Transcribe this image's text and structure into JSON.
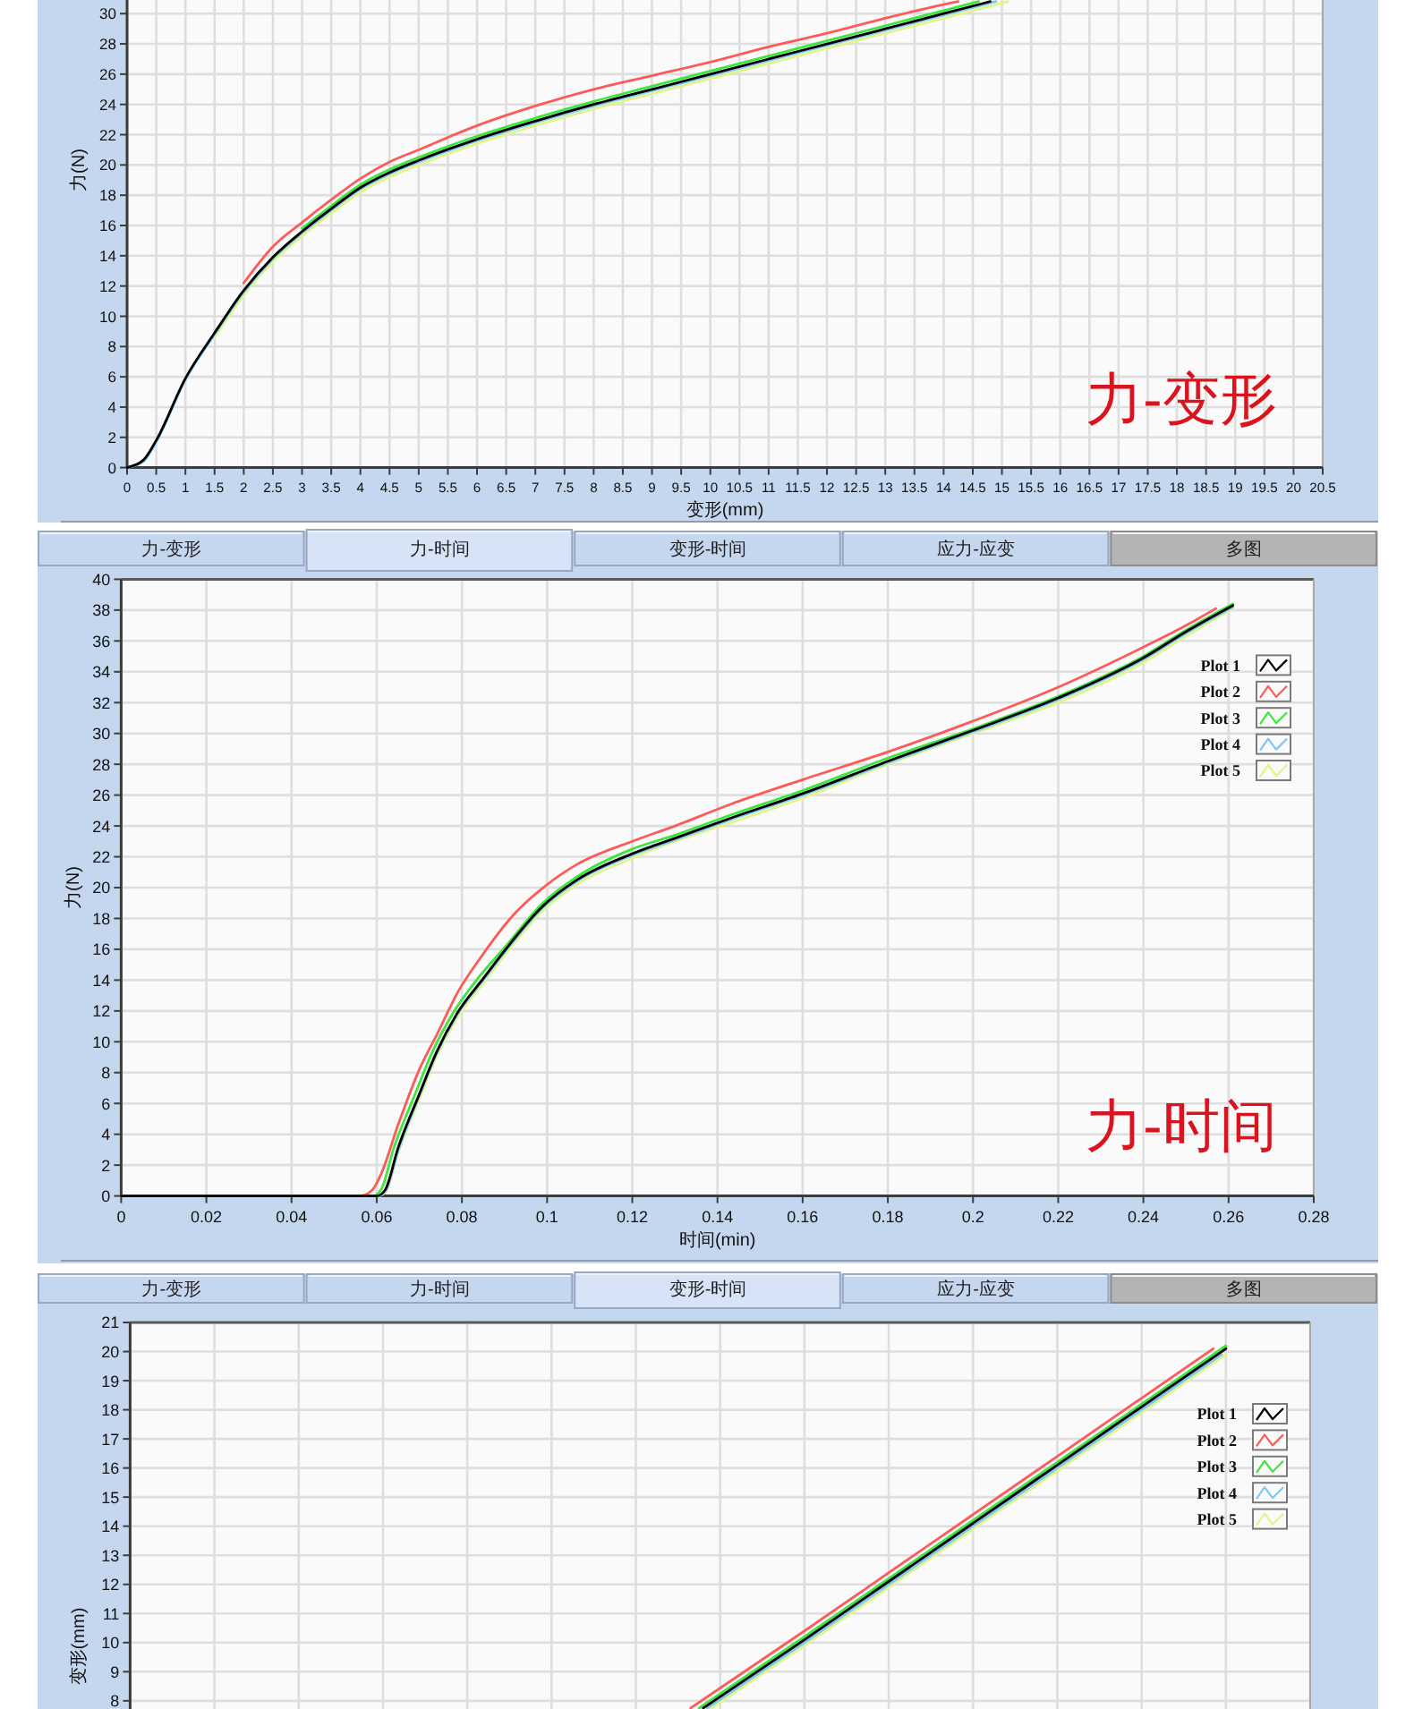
{
  "chart_data": [
    {
      "type": "line",
      "title": "力-变形",
      "xlabel": "变形(mm)",
      "ylabel": "力(N)",
      "xlim": [
        0,
        20.5
      ],
      "ylim": [
        0,
        30.9
      ],
      "xticks": [
        0,
        0.5,
        1,
        1.5,
        2,
        2.5,
        3,
        3.5,
        4,
        4.5,
        5,
        5.5,
        6,
        6.5,
        7,
        7.5,
        8,
        8.5,
        9,
        9.5,
        10,
        10.5,
        11,
        11.5,
        12,
        12.5,
        13,
        13.5,
        14,
        14.5,
        15,
        15.5,
        16,
        16.5,
        17,
        17.5,
        18,
        18.5,
        19,
        19.5,
        20,
        20.5
      ],
      "yticks": [
        0,
        2,
        4,
        6,
        8,
        10,
        12,
        14,
        16,
        18,
        20,
        22,
        24,
        26,
        28,
        30
      ],
      "grid": true,
      "series": [
        {
          "color": "#000000",
          "x": [
            0,
            0.28,
            0.5,
            1,
            1.5,
            2,
            2.5,
            3,
            3.5,
            4,
            4.5,
            5,
            6,
            7,
            8,
            9,
            10,
            11,
            12,
            13,
            14,
            14.8
          ],
          "values": [
            0,
            0.5,
            1.8,
            5.9,
            8.9,
            11.7,
            13.9,
            15.6,
            17.1,
            18.5,
            19.5,
            20.3,
            21.7,
            22.9,
            24,
            25,
            26,
            27,
            28,
            29,
            30,
            30.8
          ]
        },
        {
          "color": "#ff5a5a",
          "x": [
            2,
            2.5,
            3,
            3.5,
            4,
            4.5,
            5,
            6,
            7,
            8,
            9,
            10,
            11,
            12,
            13,
            14,
            14.25
          ],
          "values": [
            12.2,
            14.6,
            16.2,
            17.7,
            19.1,
            20.2,
            21,
            22.6,
            23.9,
            25,
            25.9,
            26.8,
            27.8,
            28.7,
            29.7,
            30.6,
            30.8
          ]
        },
        {
          "color": "#3ce63c",
          "x": [
            3,
            3.5,
            4,
            4.5,
            5,
            6,
            7,
            8,
            9,
            10,
            11,
            12,
            13,
            14,
            14.6
          ],
          "values": [
            15.8,
            17.3,
            18.7,
            19.7,
            20.5,
            21.9,
            23.1,
            24.2,
            25.2,
            26.2,
            27.2,
            28.2,
            29.2,
            30.2,
            30.8
          ]
        },
        {
          "color": "#80c8f0",
          "x": [
            0,
            0.28,
            0.5,
            1,
            1.5,
            2,
            2.5,
            3,
            3.5,
            4,
            4.5,
            5,
            6,
            7,
            8,
            9,
            10,
            11,
            12,
            13,
            14,
            14.9
          ],
          "values": [
            0,
            0.4,
            1.7,
            5.8,
            8.8,
            11.6,
            13.8,
            15.5,
            17,
            18.4,
            19.4,
            20.2,
            21.6,
            22.8,
            23.9,
            24.9,
            25.9,
            26.9,
            27.9,
            28.9,
            29.9,
            30.8
          ]
        },
        {
          "color": "#e2f58a",
          "x": [
            1.5,
            2,
            2.5,
            3,
            3.5,
            4,
            4.5,
            5,
            6,
            7,
            8,
            9,
            10,
            11,
            12,
            13,
            14,
            15.1
          ],
          "values": [
            8.6,
            11.4,
            13.6,
            15.3,
            16.8,
            18.2,
            19.2,
            20,
            21.4,
            22.6,
            23.7,
            24.7,
            25.7,
            26.7,
            27.7,
            28.7,
            29.7,
            30.8
          ]
        }
      ]
    },
    {
      "type": "line",
      "title": "力-时间",
      "xlabel": "时间(min)",
      "ylabel": "力(N)",
      "annotations": [
        "力-变形",
        "力-时间",
        "变形-时间",
        "应力-应变",
        "多图"
      ],
      "xlim": [
        0,
        0.28
      ],
      "ylim": [
        0,
        40
      ],
      "xticks": [
        0,
        0.02,
        0.04,
        0.06,
        0.08,
        0.1,
        0.12,
        0.14,
        0.16,
        0.18,
        0.2,
        0.22,
        0.24,
        0.26,
        0.28
      ],
      "yticks": [
        0,
        2,
        4,
        6,
        8,
        10,
        12,
        14,
        16,
        18,
        20,
        22,
        24,
        26,
        28,
        30,
        32,
        34,
        36,
        38,
        40
      ],
      "grid": true,
      "legend": "top right",
      "series": [
        {
          "name": "Plot 1",
          "color": "#000000",
          "x": [
            0,
            0.06,
            0.062,
            0.065,
            0.07,
            0.074,
            0.079,
            0.085,
            0.09,
            0.099,
            0.107,
            0.12,
            0.13,
            0.143,
            0.16,
            0.18,
            0.2,
            0.22,
            0.24,
            0.25,
            0.261
          ],
          "values": [
            0,
            0,
            0.4,
            3.1,
            6.6,
            9.3,
            11.9,
            14.1,
            15.9,
            18.8,
            20.5,
            22.2,
            23.2,
            24.5,
            26.1,
            28.2,
            30.2,
            32.3,
            34.9,
            36.6,
            38.3
          ]
        },
        {
          "name": "Plot 2",
          "color": "#ff5a5a",
          "x": [
            0,
            0.056,
            0.059,
            0.061,
            0.065,
            0.07,
            0.074,
            0.079,
            0.085,
            0.092,
            0.1,
            0.107,
            0.12,
            0.13,
            0.143,
            0.16,
            0.18,
            0.2,
            0.22,
            0.24,
            0.25,
            0.257
          ],
          "values": [
            0,
            0,
            0.4,
            1.4,
            4.6,
            8.2,
            10.4,
            13.2,
            15.7,
            18.2,
            20.2,
            21.5,
            23,
            24,
            25.4,
            27,
            28.8,
            30.8,
            33,
            35.6,
            37,
            38.1
          ]
        },
        {
          "name": "Plot 3",
          "color": "#3ce63c",
          "x": [
            0,
            0.059,
            0.061,
            0.064,
            0.069,
            0.073,
            0.078,
            0.084,
            0.09,
            0.099,
            0.107,
            0.12,
            0.13,
            0.143,
            0.16,
            0.18,
            0.2,
            0.22,
            0.24,
            0.25,
            0.261
          ],
          "values": [
            0,
            0,
            0.4,
            3.1,
            6.6,
            9.3,
            11.9,
            14.2,
            16.1,
            19,
            20.7,
            22.5,
            23.4,
            24.7,
            26.3,
            28.4,
            30.3,
            32.4,
            35,
            36.7,
            38.4
          ]
        },
        {
          "name": "Plot 4",
          "color": "#80c8f0",
          "x": [
            0,
            0.06,
            0.062,
            0.065,
            0.07,
            0.074,
            0.079,
            0.085,
            0.09,
            0.099,
            0.107,
            0.12,
            0.13,
            0.143,
            0.16,
            0.18,
            0.2,
            0.22,
            0.24,
            0.25,
            0.261
          ],
          "values": [
            0,
            0,
            0.3,
            2.9,
            6.5,
            9.2,
            11.8,
            14,
            15.8,
            18.7,
            20.4,
            22.1,
            23.1,
            24.4,
            26,
            28.1,
            30.1,
            32.2,
            34.8,
            36.5,
            38.2
          ]
        },
        {
          "name": "Plot 5",
          "color": "#e2f58a",
          "x": [
            0,
            0.06,
            0.062,
            0.065,
            0.07,
            0.074,
            0.079,
            0.085,
            0.09,
            0.099,
            0.107,
            0.12,
            0.13,
            0.143,
            0.16,
            0.18,
            0.2,
            0.22,
            0.24,
            0.25,
            0.261
          ],
          "values": [
            0,
            0,
            0.2,
            2.8,
            6.3,
            9,
            11.6,
            13.8,
            15.6,
            18.5,
            20.2,
            21.9,
            23,
            24.2,
            25.8,
            28,
            30,
            32,
            34.6,
            36.3,
            38.1
          ]
        }
      ]
    },
    {
      "type": "line",
      "ylabel": "变形(mm)",
      "annotations": [
        "力-变形",
        "力-时间",
        "变形-时间",
        "应力-应变",
        "多图"
      ],
      "xlim": [
        0,
        0.28
      ],
      "ylim": [
        7.7,
        21
      ],
      "xticks": [
        {
          "value": 0,
          "label": null
        },
        {
          "value": 0.02,
          "label": null
        },
        {
          "value": 0.04,
          "label": null
        },
        {
          "value": 0.06,
          "label": null
        },
        {
          "value": 0.08,
          "label": null
        },
        {
          "value": 0.1,
          "label": null
        },
        {
          "value": 0.12,
          "label": null
        },
        {
          "value": 0.14,
          "label": null
        },
        {
          "value": 0.16,
          "label": null
        },
        {
          "value": 0.18,
          "label": null
        },
        {
          "value": 0.2,
          "label": null
        },
        {
          "value": 0.22,
          "label": null
        },
        {
          "value": 0.24,
          "label": null
        },
        {
          "value": 0.26,
          "label": null
        },
        {
          "value": 0.28,
          "label": null
        }
      ],
      "yticks": [
        8,
        9,
        10,
        11,
        12,
        13,
        14,
        15,
        16,
        17,
        18,
        19,
        20,
        21
      ],
      "grid": true,
      "legend": "top right",
      "tick_labels": "y",
      "series": [
        {
          "name": "Plot 1",
          "color": "#000000",
          "x": [
            0.136,
            0.16,
            0.18,
            0.2,
            0.22,
            0.24,
            0.26
          ],
          "values": [
            7.75,
            10.1,
            12.1,
            14.1,
            16.1,
            18.1,
            20.1
          ]
        },
        {
          "name": "Plot 2",
          "color": "#ff5a5a",
          "x": [
            0.133,
            0.16,
            0.18,
            0.2,
            0.22,
            0.24,
            0.257
          ],
          "values": [
            7.75,
            10.4,
            12.4,
            14.4,
            16.4,
            18.4,
            20.1
          ]
        },
        {
          "name": "Plot 3",
          "color": "#3ce63c",
          "x": [
            0.135,
            0.16,
            0.18,
            0.2,
            0.22,
            0.24,
            0.26
          ],
          "values": [
            7.75,
            10.2,
            12.2,
            14.2,
            16.2,
            18.2,
            20.2
          ]
        },
        {
          "name": "Plot 4",
          "color": "#80c8f0",
          "x": [
            0.137,
            0.16,
            0.18,
            0.2,
            0.22,
            0.24,
            0.259
          ],
          "values": [
            7.75,
            10,
            12,
            14,
            16,
            18,
            19.9
          ]
        },
        {
          "name": "Plot 5",
          "color": "#e2f58a",
          "x": [
            0.138,
            0.16,
            0.18,
            0.2,
            0.22,
            0.24,
            0.26
          ],
          "values": [
            7.75,
            9.9,
            11.9,
            13.9,
            15.9,
            17.9,
            19.9
          ]
        }
      ]
    }
  ]
}
